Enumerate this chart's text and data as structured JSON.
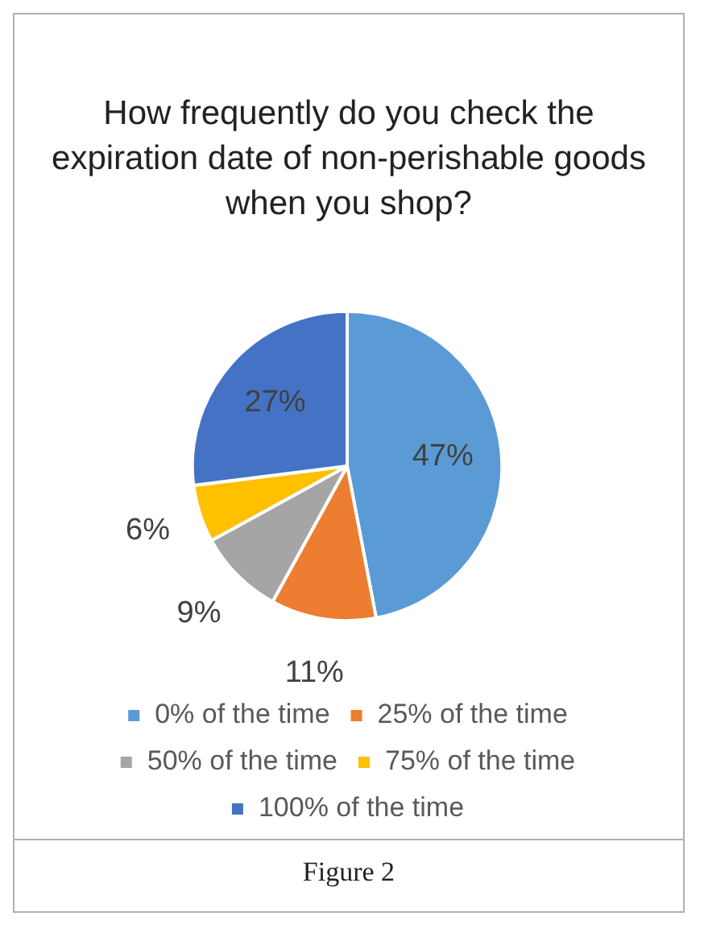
{
  "chart_data": {
    "type": "pie",
    "title": "How frequently do you check the expiration date of non-perishable goods when you shop?",
    "categories": [
      "0% of the time",
      "25% of the time",
      "50% of the time",
      "75% of the time",
      "100% of the time"
    ],
    "values": [
      47,
      11,
      9,
      6,
      27
    ],
    "colors": [
      "#5b9bd5",
      "#ed7d31",
      "#a5a5a5",
      "#ffc000",
      "#4472c4"
    ],
    "value_labels": [
      "47%",
      "11%",
      "9%",
      "6%",
      "27%"
    ],
    "legend": "bottom",
    "annotations": [
      "Figure 2"
    ]
  }
}
